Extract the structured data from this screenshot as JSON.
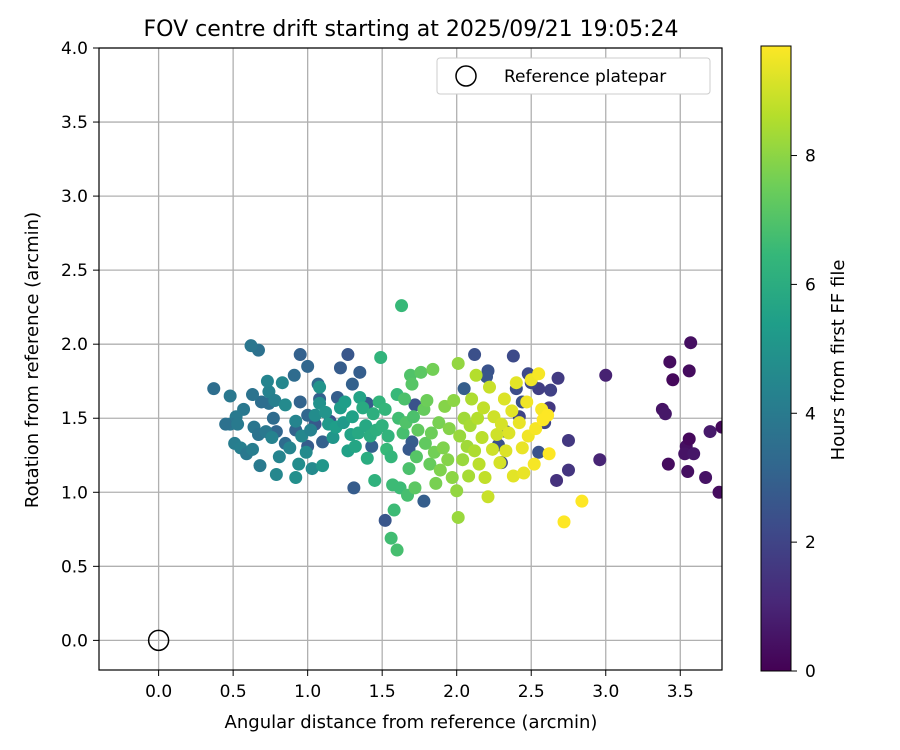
{
  "chart_data": {
    "type": "scatter",
    "title": "FOV centre drift starting at 2025/09/21 19:05:24",
    "xlabel": "Angular distance from reference (arcmin)",
    "ylabel": "Rotation from reference (arcmin)",
    "xlim": [
      -0.4,
      3.78
    ],
    "ylim": [
      -0.2,
      4.0
    ],
    "xticks": [
      "0.0",
      "0.5",
      "1.0",
      "1.5",
      "2.0",
      "2.5",
      "3.0",
      "3.5"
    ],
    "yticks": [
      "0.0",
      "0.5",
      "1.0",
      "1.5",
      "2.0",
      "2.5",
      "3.0",
      "3.5",
      "4.0"
    ],
    "grid": true,
    "legend": {
      "placement": "top-right",
      "entries": [
        "Reference platepar"
      ]
    },
    "colorbar": {
      "label": "Hours from first FF file",
      "range": [
        0,
        9.7
      ],
      "ticks": [
        "0",
        "2",
        "4",
        "6",
        "8"
      ],
      "colormap": "viridis"
    },
    "reference_point": {
      "x": 0.0,
      "y": 0.0
    },
    "points_xyh": [
      [
        3.43,
        1.88,
        0.3
      ],
      [
        3.57,
        2.01,
        0.4
      ],
      [
        3.56,
        1.82,
        0.3
      ],
      [
        3.45,
        1.76,
        0.2
      ],
      [
        3.38,
        1.56,
        0.5
      ],
      [
        3.4,
        1.53,
        0.6
      ],
      [
        3.54,
        1.31,
        0.4
      ],
      [
        3.56,
        1.36,
        0.2
      ],
      [
        3.53,
        1.26,
        0.5
      ],
      [
        3.59,
        1.26,
        0.6
      ],
      [
        3.7,
        1.41,
        0.7
      ],
      [
        3.42,
        1.19,
        0.3
      ],
      [
        3.55,
        1.14,
        0.4
      ],
      [
        3.67,
        1.1,
        0.5
      ],
      [
        3.76,
        1.0,
        0.3
      ],
      [
        3.78,
        1.44,
        0.2
      ],
      [
        3.0,
        1.79,
        0.9
      ],
      [
        2.96,
        1.22,
        1.0
      ],
      [
        2.75,
        1.35,
        1.6
      ],
      [
        2.75,
        1.15,
        1.5
      ],
      [
        2.67,
        1.08,
        1.4
      ],
      [
        2.68,
        1.77,
        1.7
      ],
      [
        2.63,
        1.69,
        1.9
      ],
      [
        2.62,
        1.57,
        1.6
      ],
      [
        2.59,
        1.47,
        2.0
      ],
      [
        2.55,
        1.7,
        1.8
      ],
      [
        2.5,
        1.74,
        2.1
      ],
      [
        2.48,
        1.8,
        2.2
      ],
      [
        2.44,
        1.61,
        2.4
      ],
      [
        2.42,
        1.51,
        2.0
      ],
      [
        2.38,
        1.92,
        2.2
      ],
      [
        2.4,
        1.7,
        2.3
      ],
      [
        2.33,
        1.41,
        2.6
      ],
      [
        2.3,
        1.2,
        2.2
      ],
      [
        2.28,
        1.32,
        2.4
      ],
      [
        2.21,
        1.82,
        2.5
      ],
      [
        2.2,
        1.78,
        2.6
      ],
      [
        2.12,
        1.93,
        2.4
      ],
      [
        2.05,
        1.7,
        2.9
      ],
      [
        2.55,
        1.27,
        2.5
      ],
      [
        1.7,
        1.34,
        2.8
      ],
      [
        1.68,
        1.29,
        2.7
      ],
      [
        1.72,
        1.59,
        2.5
      ],
      [
        1.78,
        0.94,
        2.9
      ],
      [
        1.52,
        0.81,
        2.6
      ],
      [
        1.31,
        1.03,
        2.8
      ],
      [
        1.43,
        1.31,
        3.0
      ],
      [
        1.4,
        1.6,
        2.7
      ],
      [
        1.35,
        1.81,
        2.9
      ],
      [
        1.27,
        1.93,
        2.6
      ],
      [
        1.22,
        1.84,
        2.8
      ],
      [
        1.3,
        1.73,
        3.0
      ],
      [
        1.2,
        1.64,
        2.9
      ],
      [
        1.15,
        1.48,
        2.5
      ],
      [
        1.05,
        1.46,
        2.7
      ],
      [
        1.0,
        1.31,
        2.8
      ],
      [
        0.92,
        1.42,
        3.1
      ],
      [
        1.0,
        1.52,
        3.2
      ],
      [
        1.1,
        1.34,
        3.0
      ],
      [
        0.95,
        1.93,
        3.0
      ],
      [
        0.91,
        1.79,
        3.4
      ],
      [
        0.95,
        1.61,
        3.1
      ],
      [
        1.07,
        1.73,
        3.3
      ],
      [
        1.0,
        1.85,
        3.2
      ],
      [
        1.08,
        1.63,
        3.0
      ],
      [
        0.79,
        1.41,
        3.2
      ],
      [
        0.77,
        1.5,
        3.4
      ],
      [
        0.85,
        1.33,
        3.4
      ],
      [
        0.74,
        1.6,
        3.6
      ],
      [
        0.67,
        1.96,
        3.6
      ],
      [
        0.62,
        1.99,
        3.8
      ],
      [
        0.69,
        1.61,
        3.5
      ],
      [
        0.63,
        1.66,
        3.7
      ],
      [
        0.57,
        1.56,
        3.9
      ],
      [
        0.52,
        1.51,
        4.0
      ],
      [
        0.48,
        1.46,
        3.8
      ],
      [
        0.45,
        1.46,
        3.6
      ],
      [
        0.37,
        1.7,
        3.5
      ],
      [
        0.48,
        1.65,
        3.9
      ],
      [
        0.51,
        1.33,
        4.1
      ],
      [
        0.53,
        1.46,
        4.0
      ],
      [
        0.55,
        1.3,
        4.2
      ],
      [
        0.59,
        1.26,
        3.9
      ],
      [
        0.64,
        1.44,
        3.8
      ],
      [
        0.67,
        1.39,
        3.7
      ],
      [
        0.63,
        1.29,
        4.1
      ],
      [
        0.68,
        1.18,
        4.0
      ],
      [
        0.72,
        1.41,
        3.9
      ],
      [
        0.74,
        1.68,
        4.3
      ],
      [
        0.73,
        1.75,
        4.4
      ],
      [
        0.76,
        1.37,
        4.3
      ],
      [
        0.78,
        1.62,
        4.2
      ],
      [
        0.79,
        1.12,
        4.5
      ],
      [
        0.81,
        1.24,
        4.4
      ],
      [
        0.83,
        1.74,
        4.5
      ],
      [
        0.85,
        1.59,
        4.6
      ],
      [
        0.88,
        1.3,
        4.4
      ],
      [
        0.92,
        1.48,
        4.4
      ],
      [
        0.92,
        1.1,
        4.8
      ],
      [
        0.94,
        1.19,
        4.7
      ],
      [
        0.96,
        1.38,
        4.5
      ],
      [
        0.99,
        1.27,
        4.6
      ],
      [
        1.02,
        1.42,
        4.3
      ],
      [
        1.03,
        1.16,
        4.6
      ],
      [
        1.05,
        1.52,
        4.7
      ],
      [
        1.08,
        1.6,
        4.9
      ],
      [
        1.08,
        1.71,
        5.0
      ],
      [
        1.1,
        1.18,
        5.1
      ],
      [
        1.12,
        1.54,
        5.0
      ],
      [
        1.14,
        1.46,
        5.2
      ],
      [
        1.17,
        1.37,
        5.1
      ],
      [
        1.19,
        1.44,
        5.4
      ],
      [
        1.22,
        1.57,
        5.3
      ],
      [
        1.24,
        1.47,
        5.2
      ],
      [
        1.25,
        1.61,
        5.4
      ],
      [
        1.27,
        1.28,
        5.5
      ],
      [
        1.29,
        1.39,
        5.6
      ],
      [
        1.3,
        1.51,
        5.5
      ],
      [
        1.32,
        1.31,
        5.7
      ],
      [
        1.34,
        1.4,
        5.8
      ],
      [
        1.35,
        1.64,
        5.6
      ],
      [
        1.37,
        1.57,
        5.9
      ],
      [
        1.39,
        1.45,
        5.8
      ],
      [
        1.4,
        1.23,
        6.0
      ],
      [
        1.42,
        1.38,
        6.0
      ],
      [
        1.44,
        1.53,
        6.1
      ],
      [
        1.45,
        1.08,
        6.2
      ],
      [
        1.46,
        1.42,
        6.1
      ],
      [
        1.48,
        1.61,
        6.3
      ],
      [
        1.49,
        1.91,
        6.3
      ],
      [
        1.5,
        1.45,
        6.2
      ],
      [
        1.52,
        1.56,
        6.4
      ],
      [
        1.53,
        1.29,
        6.5
      ],
      [
        1.54,
        1.38,
        6.3
      ],
      [
        1.56,
        1.24,
        6.4
      ],
      [
        1.57,
        1.05,
        6.6
      ],
      [
        1.58,
        0.88,
        6.6
      ],
      [
        1.6,
        0.61,
        6.8
      ],
      [
        1.56,
        0.69,
        6.7
      ],
      [
        1.6,
        1.66,
        6.5
      ],
      [
        1.61,
        1.5,
        6.7
      ],
      [
        1.62,
        1.03,
        6.6
      ],
      [
        1.63,
        2.26,
        6.5
      ],
      [
        1.64,
        1.4,
        6.8
      ],
      [
        1.65,
        1.63,
        6.9
      ],
      [
        1.66,
        1.47,
        7.0
      ],
      [
        1.67,
        0.98,
        6.8
      ],
      [
        1.68,
        1.16,
        6.9
      ],
      [
        1.69,
        1.79,
        7.0
      ],
      [
        1.7,
        1.73,
        7.1
      ],
      [
        1.71,
        1.51,
        6.9
      ],
      [
        1.72,
        1.03,
        7.2
      ],
      [
        1.73,
        1.24,
        7.1
      ],
      [
        1.74,
        1.42,
        7.3
      ],
      [
        1.76,
        1.81,
        7.2
      ],
      [
        1.78,
        1.56,
        7.4
      ],
      [
        1.79,
        1.33,
        7.3
      ],
      [
        1.8,
        1.62,
        7.5
      ],
      [
        1.82,
        1.19,
        7.4
      ],
      [
        1.83,
        1.4,
        7.5
      ],
      [
        1.84,
        1.83,
        7.6
      ],
      [
        1.85,
        1.27,
        7.6
      ],
      [
        1.86,
        1.06,
        7.7
      ],
      [
        1.88,
        1.47,
        7.7
      ],
      [
        1.89,
        1.15,
        7.8
      ],
      [
        1.91,
        1.3,
        7.8
      ],
      [
        1.92,
        1.58,
        7.9
      ],
      [
        1.94,
        1.22,
        7.9
      ],
      [
        1.95,
        1.43,
        7.9
      ],
      [
        1.97,
        1.1,
        8.0
      ],
      [
        1.98,
        1.62,
        8.0
      ],
      [
        2.0,
        1.01,
        8.1
      ],
      [
        2.01,
        0.83,
        8.2
      ],
      [
        2.01,
        1.87,
        8.1
      ],
      [
        2.02,
        1.38,
        8.2
      ],
      [
        2.04,
        1.22,
        8.2
      ],
      [
        2.05,
        1.5,
        8.3
      ],
      [
        2.07,
        1.31,
        8.3
      ],
      [
        2.08,
        1.11,
        8.4
      ],
      [
        2.09,
        1.45,
        8.4
      ],
      [
        2.1,
        1.63,
        8.5
      ],
      [
        2.12,
        1.28,
        8.5
      ],
      [
        2.13,
        1.79,
        8.6
      ],
      [
        2.14,
        1.5,
        8.6
      ],
      [
        2.15,
        1.19,
        8.7
      ],
      [
        2.17,
        1.37,
        8.7
      ],
      [
        2.18,
        1.57,
        8.8
      ],
      [
        2.19,
        1.1,
        8.8
      ],
      [
        2.21,
        0.97,
        8.9
      ],
      [
        2.22,
        1.71,
        8.9
      ],
      [
        2.24,
        1.29,
        9.0
      ],
      [
        2.25,
        1.51,
        9.0
      ],
      [
        2.27,
        1.39,
        9.0
      ],
      [
        2.29,
        1.2,
        9.1
      ],
      [
        2.3,
        1.46,
        9.1
      ],
      [
        2.32,
        1.63,
        9.2
      ],
      [
        2.33,
        1.28,
        9.2
      ],
      [
        2.35,
        1.4,
        9.2
      ],
      [
        2.37,
        1.55,
        9.3
      ],
      [
        2.38,
        1.11,
        9.3
      ],
      [
        2.4,
        1.74,
        9.3
      ],
      [
        2.42,
        1.47,
        9.4
      ],
      [
        2.44,
        1.3,
        9.4
      ],
      [
        2.45,
        1.13,
        9.4
      ],
      [
        2.47,
        1.61,
        9.5
      ],
      [
        2.48,
        1.38,
        9.5
      ],
      [
        2.5,
        1.76,
        9.5
      ],
      [
        2.52,
        1.19,
        9.6
      ],
      [
        2.53,
        1.43,
        9.6
      ],
      [
        2.55,
        1.8,
        9.6
      ],
      [
        2.57,
        1.56,
        9.6
      ],
      [
        2.58,
        1.49,
        9.7
      ],
      [
        2.61,
        1.52,
        9.7
      ],
      [
        2.62,
        1.26,
        9.7
      ],
      [
        2.72,
        0.8,
        9.7
      ],
      [
        2.84,
        0.94,
        9.7
      ]
    ]
  }
}
